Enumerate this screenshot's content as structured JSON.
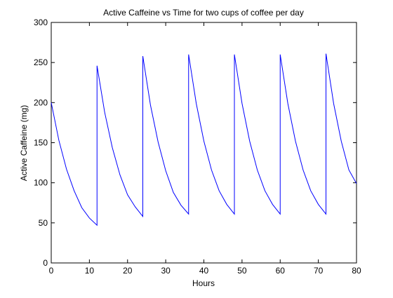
{
  "chart_data": {
    "type": "line",
    "title": "Active Caffeine vs Time for two cups of coffee per day",
    "xlabel": "Hours",
    "ylabel": "Active Caffeine (mg)",
    "xlim": [
      0,
      80
    ],
    "ylim": [
      0,
      300
    ],
    "x_ticks": [
      0,
      10,
      20,
      30,
      40,
      50,
      60,
      70,
      80
    ],
    "y_ticks": [
      0,
      50,
      100,
      150,
      200,
      250,
      300
    ],
    "grid": false,
    "legend": "none",
    "series": [
      {
        "color": "#0000ff",
        "x": [
          0,
          2,
          4,
          6,
          8,
          10,
          12,
          12,
          14,
          16,
          18,
          20,
          22,
          24,
          24,
          26,
          28,
          30,
          32,
          34,
          36,
          36,
          38,
          40,
          42,
          44,
          46,
          48,
          48,
          50,
          52,
          54,
          56,
          58,
          60,
          60,
          62,
          64,
          66,
          68,
          70,
          72,
          72,
          74,
          76,
          78,
          80
        ],
        "y": [
          200,
          153,
          117,
          90,
          69,
          56,
          47,
          246,
          188,
          144,
          110,
          85,
          70,
          58,
          258,
          197,
          151,
          115,
          88,
          72,
          61,
          260,
          199,
          152,
          116,
          90,
          73,
          61,
          260,
          199,
          152,
          116,
          90,
          73,
          61,
          260,
          199,
          152,
          116,
          90,
          73,
          61,
          261,
          199,
          152,
          116,
          99
        ]
      }
    ]
  }
}
